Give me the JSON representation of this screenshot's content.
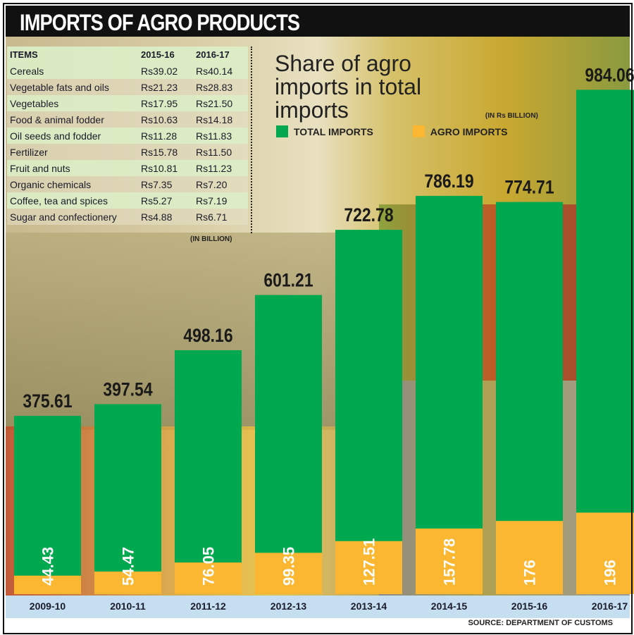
{
  "header": {
    "title": "IMPORTS OF AGRO PRODUCTS"
  },
  "items_table": {
    "headers": [
      "ITEMS",
      "2015-16",
      "2016-17"
    ],
    "rows": [
      [
        "Cereals",
        "Rs39.02",
        "Rs40.14"
      ],
      [
        "Vegetable fats and oils",
        "Rs21.23",
        "Rs28.83"
      ],
      [
        "Vegetables",
        "Rs17.95",
        "Rs21.50"
      ],
      [
        "Food & animal fodder",
        "Rs10.63",
        "Rs14.18"
      ],
      [
        "Oil seeds and fodder",
        "Rs11.28",
        "Rs11.83"
      ],
      [
        "Fertilizer",
        "Rs15.78",
        "Rs11.50"
      ],
      [
        "Fruit and nuts",
        "Rs10.81",
        "Rs11.23"
      ],
      [
        "Organic chemicals",
        "Rs7.35",
        "Rs7.20"
      ],
      [
        "Coffee, tea and spices",
        "Rs5.27",
        "Rs7.19"
      ],
      [
        "Sugar and confectionery",
        "Rs4.88",
        "Rs6.71"
      ]
    ],
    "unit_note": "(IN BILLION)"
  },
  "chart_data": {
    "type": "bar",
    "title": "Share of agro imports in total imports",
    "unit": "(IN Rs BILLION)",
    "categories": [
      "2009-10",
      "2010-11",
      "2011-12",
      "2012-13",
      "2013-14",
      "2014-15",
      "2015-16",
      "2016-17"
    ],
    "series": [
      {
        "name": "TOTAL IMPORTS",
        "color": "#00a84f",
        "values": [
          375.61,
          397.54,
          498.16,
          601.21,
          722.78,
          786.19,
          774.71,
          984.06
        ],
        "labels": [
          "375.61",
          "397.54",
          "498.16",
          "601.21",
          "722.78",
          "786.19",
          "774.71",
          "984.06"
        ]
      },
      {
        "name": "AGRO IMPORTS",
        "color": "#fbb731",
        "values": [
          44.43,
          54.47,
          76.05,
          99.35,
          127.51,
          157.78,
          176,
          196
        ],
        "labels": [
          "44.43",
          "54.47",
          "76.05",
          "99.35",
          "127.51",
          "157.78",
          "176",
          "196"
        ]
      }
    ],
    "legend": "top-center",
    "source": "SOURCE: DEPARTMENT OF CUSTOMS"
  }
}
